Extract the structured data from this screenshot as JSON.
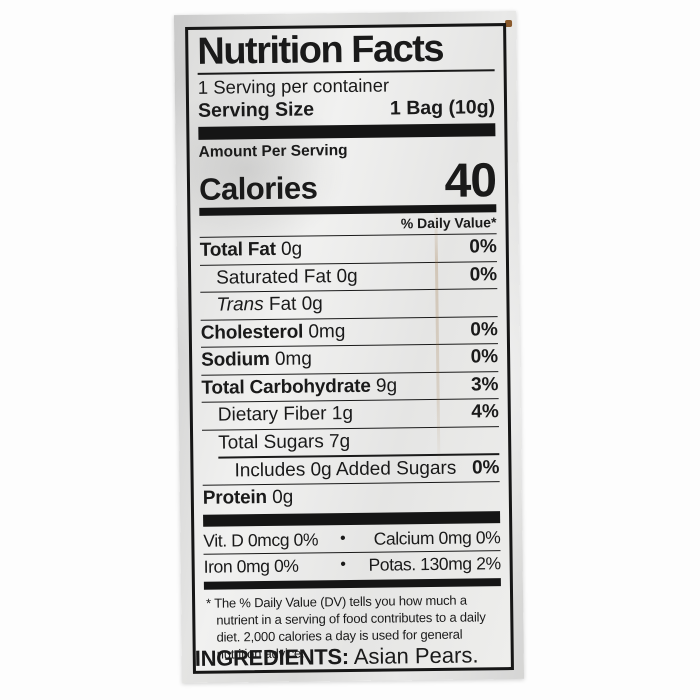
{
  "nutrition_label": {
    "title": "Nutrition Facts",
    "servings_per_container": "1 Serving per container",
    "serving_size": {
      "label": "Serving Size",
      "value": "1 Bag (10g)"
    },
    "amount_per_serving": "Amount Per Serving",
    "calories": {
      "label": "Calories",
      "value": "40"
    },
    "daily_value_header": "% Daily Value*",
    "nutrients": [
      {
        "bold": "Total Fat",
        "rest": " 0g",
        "dv": "0%"
      },
      {
        "bold": "",
        "rest": "Saturated Fat 0g",
        "dv": "0%"
      },
      {
        "italic": "Trans",
        "rest": " Fat 0g",
        "dv": ""
      },
      {
        "bold": "Cholesterol",
        "rest": " 0mg",
        "dv": "0%"
      },
      {
        "bold": "Sodium",
        "rest": " 0mg",
        "dv": "0%"
      },
      {
        "bold": "Total Carbohydrate",
        "rest": " 9g",
        "dv": "3%"
      },
      {
        "bold": "",
        "rest": "Dietary Fiber 1g",
        "dv": "4%"
      },
      {
        "bold": "",
        "rest": "Total Sugars 7g",
        "dv": ""
      },
      {
        "bold": "",
        "rest": "Includes 0g Added Sugars",
        "dv": "0%"
      },
      {
        "bold": "Protein",
        "rest": " 0g",
        "dv": ""
      }
    ],
    "micronutrients": [
      {
        "left": "Vit. D 0mcg 0%",
        "separator": "•",
        "right": "Calcium 0mg 0%"
      },
      {
        "left": "Iron 0mg 0%",
        "separator": "•",
        "right": "Potas. 130mg 2%"
      }
    ],
    "footnote": "* The % Daily Value (DV) tells you how much a nutrient in a serving of food contributes to a daily diet. 2,000 calories a day is used for general nutrition advice.",
    "ingredients": {
      "label": "INGREDIENTS:",
      "value": " Asian Pears."
    }
  },
  "colors": {
    "page_background": "#fdfdfd",
    "bag": "#d9d9d8",
    "label_background": "#ececeb",
    "ink": "#1a1a1a"
  }
}
